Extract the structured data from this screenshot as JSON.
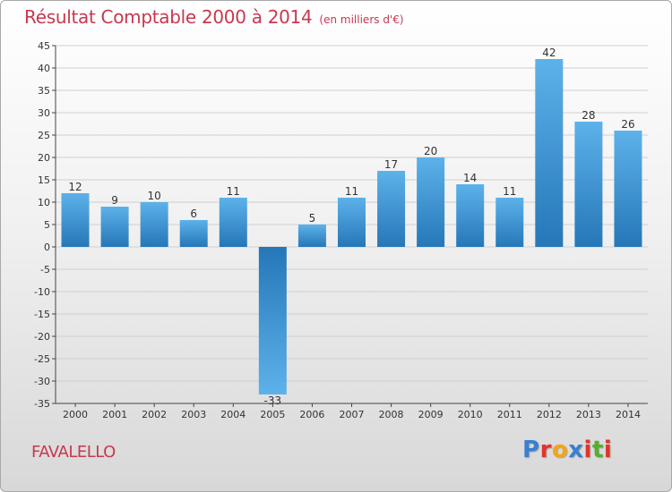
{
  "header": {
    "title": "Résultat Comptable 2000 à 2014",
    "subtitle": "(en milliers d'€)"
  },
  "footer": {
    "commune": "FAVALELLO",
    "brand_letters": [
      "P",
      "r",
      "o",
      "x",
      "i",
      "t",
      "i"
    ],
    "brand_colors": [
      "#3a7fd0",
      "#e0342c",
      "#f2a51a",
      "#3a7fd0",
      "#e0342c",
      "#58ad2f",
      "#e0342c"
    ]
  },
  "colors": {
    "accent": "#c8384f",
    "bar_light": "#5db2ea",
    "bar_dark": "#2577b8",
    "axis": "#444444",
    "grid": "#cfcfcf"
  },
  "chart_data": {
    "type": "bar",
    "categories": [
      "2000",
      "2001",
      "2002",
      "2003",
      "2004",
      "2005",
      "2006",
      "2007",
      "2008",
      "2009",
      "2010",
      "2011",
      "2012",
      "2013",
      "2014"
    ],
    "values": [
      12,
      9,
      10,
      6,
      11,
      -33,
      5,
      11,
      17,
      20,
      14,
      11,
      42,
      28,
      26
    ],
    "title": "Résultat Comptable 2000 à 2014",
    "ylim": [
      -35,
      45
    ],
    "yticks": [
      -35,
      -30,
      -25,
      -20,
      -15,
      -10,
      -5,
      0,
      5,
      10,
      15,
      20,
      25,
      30,
      35,
      40,
      45
    ],
    "ytick_labels": [
      "-35",
      "-30",
      "-25",
      "-20",
      "-15",
      "-10",
      "-5",
      "0",
      "5",
      "10",
      "15",
      "20",
      "25",
      "30",
      "35",
      "40",
      "45"
    ],
    "data_labels": [
      "12",
      "9",
      "10",
      "6",
      "11",
      "-33",
      "5",
      "11",
      "17",
      "20",
      "14",
      "11",
      "42",
      "28",
      "26"
    ],
    "grid": true,
    "legend": "none"
  }
}
